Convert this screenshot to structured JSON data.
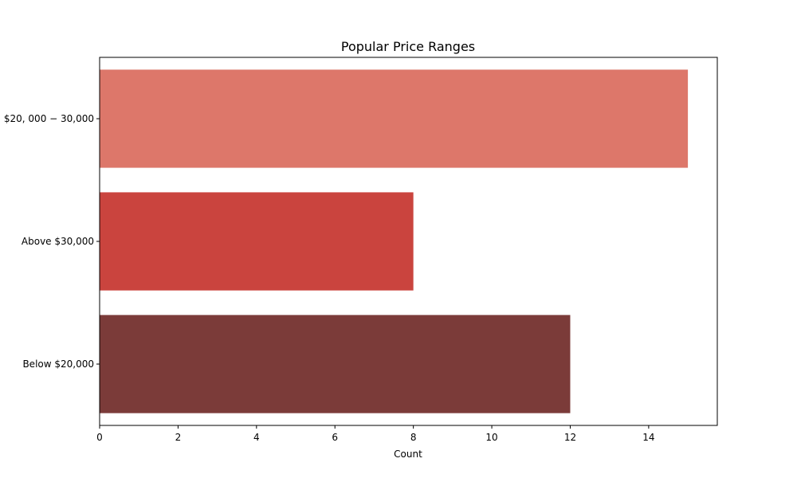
{
  "chart_data": {
    "type": "bar",
    "orientation": "horizontal",
    "title": "Popular Price Ranges",
    "xlabel": "Count",
    "ylabel": "",
    "categories": [
      "$20,000 - $30,000",
      "Above $30,000",
      "Below $20,000"
    ],
    "category_tick_labels": [
      "$20, 000 − 30,000",
      "Above $30,000",
      "Below $20,000"
    ],
    "values": [
      15,
      8,
      12
    ],
    "colors": [
      "#dd776a",
      "#ca443e",
      "#7b3b39"
    ],
    "xlim": [
      0,
      15.75
    ],
    "xticks": [
      0,
      2,
      4,
      6,
      8,
      10,
      12,
      14
    ],
    "grid": false,
    "legend": "none"
  }
}
